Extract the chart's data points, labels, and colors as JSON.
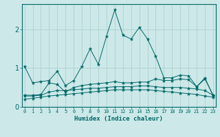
{
  "xlabel": "Humidex (Indice chaleur)",
  "background_color": "#cce8e8",
  "grid_color": "#aacccc",
  "line_color": "#006666",
  "x_values": [
    0,
    1,
    2,
    3,
    4,
    5,
    6,
    7,
    8,
    9,
    10,
    11,
    12,
    13,
    14,
    15,
    16,
    17,
    18,
    19,
    20,
    21,
    22,
    23
  ],
  "series": [
    [
      1.05,
      0.62,
      0.65,
      0.68,
      0.92,
      0.55,
      0.68,
      1.05,
      1.5,
      1.1,
      1.82,
      2.5,
      1.85,
      1.75,
      2.05,
      1.75,
      1.3,
      0.75,
      0.75,
      0.82,
      0.8,
      0.52,
      0.75,
      0.28
    ],
    [
      0.3,
      0.3,
      0.32,
      0.62,
      0.58,
      0.38,
      0.5,
      0.55,
      0.58,
      0.6,
      0.62,
      0.65,
      0.62,
      0.62,
      0.64,
      0.64,
      0.72,
      0.68,
      0.68,
      0.72,
      0.7,
      0.52,
      0.72,
      0.3
    ],
    [
      0.28,
      0.28,
      0.3,
      0.38,
      0.42,
      0.42,
      0.44,
      0.46,
      0.48,
      0.48,
      0.5,
      0.52,
      0.52,
      0.52,
      0.54,
      0.54,
      0.52,
      0.5,
      0.5,
      0.5,
      0.48,
      0.46,
      0.42,
      0.3
    ],
    [
      0.2,
      0.22,
      0.25,
      0.28,
      0.3,
      0.32,
      0.34,
      0.36,
      0.38,
      0.4,
      0.42,
      0.44,
      0.44,
      0.44,
      0.44,
      0.44,
      0.42,
      0.4,
      0.38,
      0.36,
      0.34,
      0.32,
      0.28,
      0.25
    ]
  ],
  "ylim": [
    0.0,
    2.65
  ],
  "yticks": [
    0,
    1,
    2
  ],
  "xticks": [
    0,
    1,
    2,
    3,
    4,
    5,
    6,
    7,
    8,
    9,
    10,
    11,
    12,
    13,
    14,
    15,
    16,
    17,
    18,
    19,
    20,
    21,
    22,
    23
  ],
  "xlim": [
    -0.3,
    23.3
  ]
}
